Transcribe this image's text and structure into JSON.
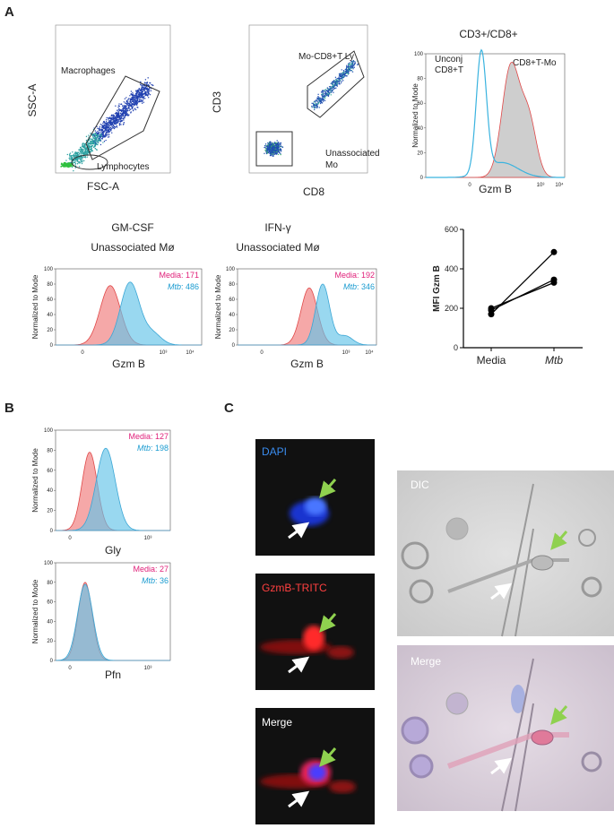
{
  "panel_a": {
    "label": "A",
    "scatter_fsc": {
      "y_label": "SSC-A",
      "x_label": "FSC-A",
      "gates": [
        "Macrophages",
        "Lymphocytes"
      ]
    },
    "scatter_cd8": {
      "y_label": "CD3",
      "x_label": "CD8",
      "gates": [
        [
          "Mo-CD8+T Ly"
        ],
        [
          "Unassociated",
          "Mo"
        ]
      ]
    },
    "hist_cd3cd8": {
      "title": "CD3+/CD8+",
      "y_label": "Normalized to Mode",
      "x_label": "Gzm B",
      "yticks": [
        0,
        20,
        40,
        60,
        80,
        100
      ],
      "xticks": [
        "0",
        "10³",
        "10⁴"
      ],
      "populations": [
        [
          "Unconj",
          "CD8+T"
        ],
        [
          "CD8+T-Mo"
        ]
      ]
    },
    "hist_gmcsf": {
      "title": [
        "GM-CSF",
        "Unassociated Mø"
      ],
      "y_label": "Normalized to Mode",
      "x_label": "Gzm B",
      "yticks": [
        0,
        20,
        40,
        60,
        80,
        100
      ],
      "xticks": [
        "0",
        "10³",
        "10⁴"
      ],
      "legend": [
        {
          "label": "Media",
          "text": ": 171"
        },
        {
          "label": "Mtb",
          "text": ": 486"
        }
      ]
    },
    "hist_ifng": {
      "title": [
        "IFN-γ",
        "Unassociated Mø"
      ],
      "y_label": "Normalized to Mode",
      "x_label": "Gzm B",
      "yticks": [
        0,
        20,
        40,
        60,
        80,
        100
      ],
      "xticks": [
        "0",
        "10³",
        "10⁴"
      ],
      "legend": [
        {
          "label": "Media",
          "text": ": 192"
        },
        {
          "label": "Mtb",
          "text": ": 346"
        }
      ]
    },
    "mfi": {
      "type": "line",
      "y_label": "MFI Gzm B",
      "categories": [
        "Media",
        "Mtb"
      ],
      "ylim": [
        0,
        600
      ],
      "yticks": [
        0,
        200,
        400,
        600
      ],
      "color": "#000000",
      "series": [
        {
          "values": [
            170,
            485
          ]
        },
        {
          "values": [
            190,
            345
          ]
        },
        {
          "values": [
            200,
            330
          ]
        }
      ]
    }
  },
  "panel_b": {
    "label": "B",
    "hist_gly": {
      "y_label": "Normalized to Mode",
      "x_label": "Gly",
      "yticks": [
        0,
        20,
        40,
        60,
        80,
        100
      ],
      "xticks": [
        "0",
        "10³"
      ],
      "legend": [
        {
          "label": "Media",
          "text": ": 127"
        },
        {
          "label": "Mtb",
          "text": ": 198"
        }
      ]
    },
    "hist_pfn": {
      "y_label": "Normalized to Mode",
      "x_label": "Pfn",
      "yticks": [
        0,
        20,
        40,
        60,
        80,
        100
      ],
      "xticks": [
        "0",
        "10³"
      ],
      "legend": [
        {
          "label": "Media",
          "text": ": 27"
        },
        {
          "label": "Mtb",
          "text": ": 36"
        }
      ]
    }
  },
  "panel_c": {
    "label": "C",
    "fluorescence": [
      "DAPI",
      "GzmB-TRITC",
      "Merge"
    ],
    "brightfield": [
      "DIC",
      "Merge"
    ]
  }
}
